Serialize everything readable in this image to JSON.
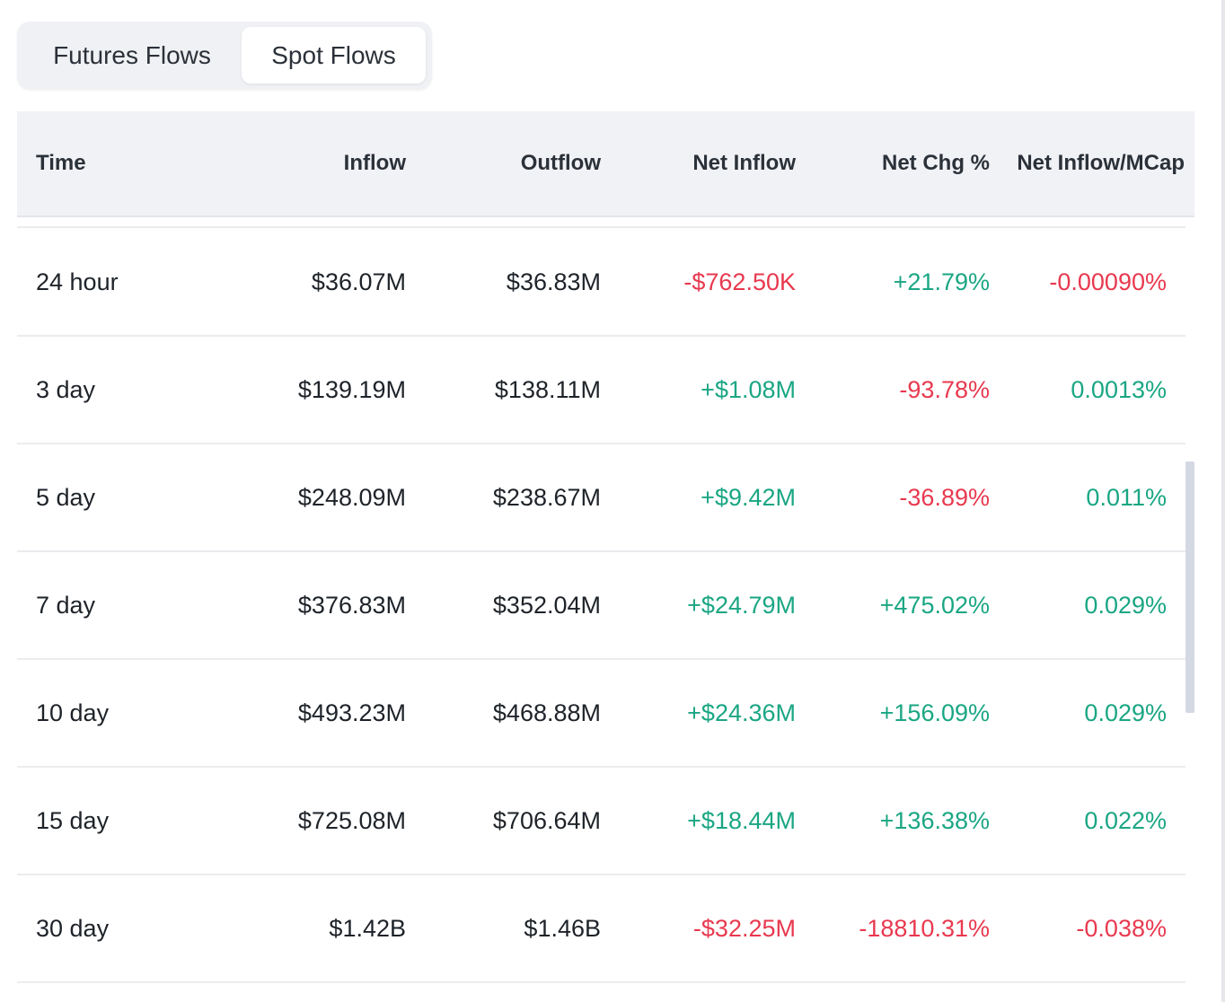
{
  "tabs": [
    {
      "label": "Futures Flows",
      "active": false
    },
    {
      "label": "Spot Flows",
      "active": true
    }
  ],
  "table": {
    "headers": {
      "time": "Time",
      "inflow": "Inflow",
      "outflow": "Outflow",
      "net_inflow": "Net Inflow",
      "net_chg": "Net Chg %",
      "net_mcap": "Net Inflow/MCap"
    },
    "rows": [
      {
        "time": "24 hour",
        "inflow": "$36.07M",
        "outflow": "$36.83M",
        "net_inflow": "-$762.50K",
        "net_chg": "+21.79%",
        "net_mcap": "-0.00090%"
      },
      {
        "time": "3 day",
        "inflow": "$139.19M",
        "outflow": "$138.11M",
        "net_inflow": "+$1.08M",
        "net_chg": "-93.78%",
        "net_mcap": "0.0013%"
      },
      {
        "time": "5 day",
        "inflow": "$248.09M",
        "outflow": "$238.67M",
        "net_inflow": "+$9.42M",
        "net_chg": "-36.89%",
        "net_mcap": "0.011%"
      },
      {
        "time": "7 day",
        "inflow": "$376.83M",
        "outflow": "$352.04M",
        "net_inflow": "+$24.79M",
        "net_chg": "+475.02%",
        "net_mcap": "0.029%"
      },
      {
        "time": "10 day",
        "inflow": "$493.23M",
        "outflow": "$468.88M",
        "net_inflow": "+$24.36M",
        "net_chg": "+156.09%",
        "net_mcap": "0.029%"
      },
      {
        "time": "15 day",
        "inflow": "$725.08M",
        "outflow": "$706.64M",
        "net_inflow": "+$18.44M",
        "net_chg": "+136.38%",
        "net_mcap": "0.022%"
      },
      {
        "time": "30 day",
        "inflow": "$1.42B",
        "outflow": "$1.46B",
        "net_inflow": "-$32.25M",
        "net_chg": "-18810.31%",
        "net_mcap": "-0.038%"
      }
    ]
  },
  "colors": {
    "positive": "#1aa683",
    "negative": "#e8394f",
    "header_bg": "#f1f2f6",
    "text": "#1e2329"
  }
}
